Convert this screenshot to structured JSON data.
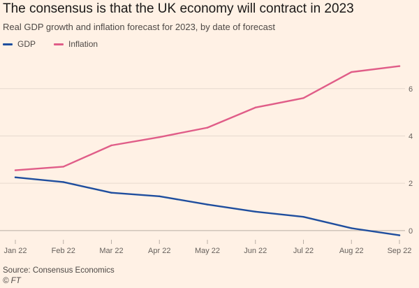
{
  "chart_data": {
    "type": "line",
    "title": "The consensus is that the UK economy will contract in 2023",
    "subtitle": "Real GDP growth and inflation forecast for 2023, by date of forecast",
    "x": [
      "Jan 22",
      "Feb 22",
      "Mar 22",
      "Apr 22",
      "May 22",
      "Jun 22",
      "Jul 22",
      "Aug 22",
      "Sep 22"
    ],
    "yticks": [
      0,
      2,
      4,
      6
    ],
    "ylim": [
      -0.3,
      7.5
    ],
    "grid": true,
    "legend_position": "top-left",
    "series": [
      {
        "name": "GDP",
        "color": "#1f4e9e",
        "values": [
          2.25,
          2.05,
          1.6,
          1.45,
          1.1,
          0.8,
          0.58,
          0.1,
          -0.2
        ]
      },
      {
        "name": "Inflation",
        "color": "#e05d88",
        "values": [
          2.55,
          2.7,
          3.6,
          3.95,
          4.35,
          5.2,
          5.6,
          6.7,
          6.95
        ]
      }
    ],
    "source": "Source: Consensus Economics",
    "copyright": "© FT"
  }
}
